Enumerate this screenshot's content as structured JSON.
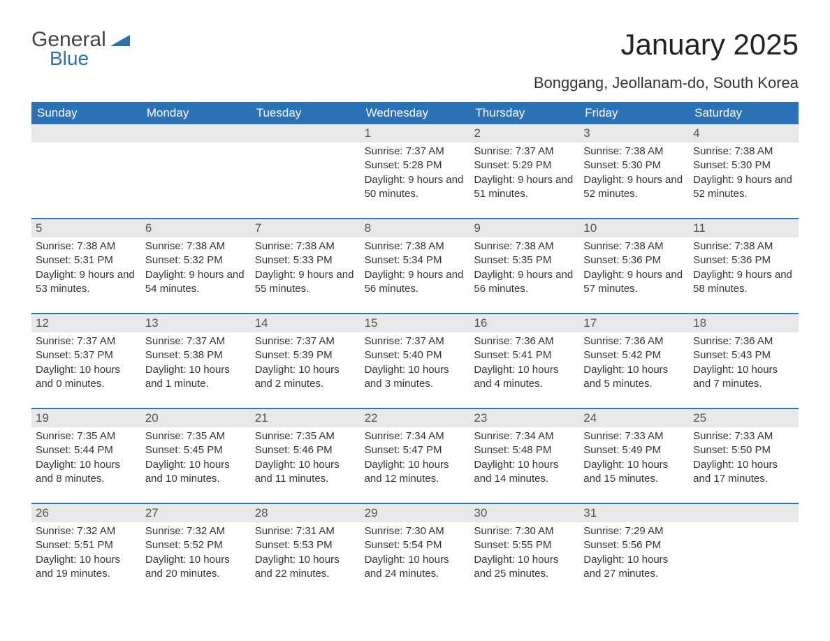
{
  "logo": {
    "general": "General",
    "blue": "Blue",
    "tri_color": "#2a72b5"
  },
  "title": "January 2025",
  "subtitle": "Bonggang, Jeollanam-do, South Korea",
  "colors": {
    "header_bg": "#2a72b5",
    "header_text": "#ffffff",
    "daynum_bg": "#e8e8e8",
    "daynum_text": "#555555",
    "body_bg": "#ffffff",
    "body_text": "#333333",
    "week_border": "#2a72b5"
  },
  "fonts": {
    "title_pt": 42,
    "subtitle_pt": 22,
    "weekday_pt": 17,
    "daynum_pt": 17,
    "body_pt": 15
  },
  "weekdays": [
    "Sunday",
    "Monday",
    "Tuesday",
    "Wednesday",
    "Thursday",
    "Friday",
    "Saturday"
  ],
  "weeks": [
    [
      {
        "day": "",
        "sunrise": "",
        "sunset": "",
        "daylight": ""
      },
      {
        "day": "",
        "sunrise": "",
        "sunset": "",
        "daylight": ""
      },
      {
        "day": "",
        "sunrise": "",
        "sunset": "",
        "daylight": ""
      },
      {
        "day": "1",
        "sunrise": "Sunrise: 7:37 AM",
        "sunset": "Sunset: 5:28 PM",
        "daylight": "Daylight: 9 hours and 50 minutes."
      },
      {
        "day": "2",
        "sunrise": "Sunrise: 7:37 AM",
        "sunset": "Sunset: 5:29 PM",
        "daylight": "Daylight: 9 hours and 51 minutes."
      },
      {
        "day": "3",
        "sunrise": "Sunrise: 7:38 AM",
        "sunset": "Sunset: 5:30 PM",
        "daylight": "Daylight: 9 hours and 52 minutes."
      },
      {
        "day": "4",
        "sunrise": "Sunrise: 7:38 AM",
        "sunset": "Sunset: 5:30 PM",
        "daylight": "Daylight: 9 hours and 52 minutes."
      }
    ],
    [
      {
        "day": "5",
        "sunrise": "Sunrise: 7:38 AM",
        "sunset": "Sunset: 5:31 PM",
        "daylight": "Daylight: 9 hours and 53 minutes."
      },
      {
        "day": "6",
        "sunrise": "Sunrise: 7:38 AM",
        "sunset": "Sunset: 5:32 PM",
        "daylight": "Daylight: 9 hours and 54 minutes."
      },
      {
        "day": "7",
        "sunrise": "Sunrise: 7:38 AM",
        "sunset": "Sunset: 5:33 PM",
        "daylight": "Daylight: 9 hours and 55 minutes."
      },
      {
        "day": "8",
        "sunrise": "Sunrise: 7:38 AM",
        "sunset": "Sunset: 5:34 PM",
        "daylight": "Daylight: 9 hours and 56 minutes."
      },
      {
        "day": "9",
        "sunrise": "Sunrise: 7:38 AM",
        "sunset": "Sunset: 5:35 PM",
        "daylight": "Daylight: 9 hours and 56 minutes."
      },
      {
        "day": "10",
        "sunrise": "Sunrise: 7:38 AM",
        "sunset": "Sunset: 5:36 PM",
        "daylight": "Daylight: 9 hours and 57 minutes."
      },
      {
        "day": "11",
        "sunrise": "Sunrise: 7:38 AM",
        "sunset": "Sunset: 5:36 PM",
        "daylight": "Daylight: 9 hours and 58 minutes."
      }
    ],
    [
      {
        "day": "12",
        "sunrise": "Sunrise: 7:37 AM",
        "sunset": "Sunset: 5:37 PM",
        "daylight": "Daylight: 10 hours and 0 minutes."
      },
      {
        "day": "13",
        "sunrise": "Sunrise: 7:37 AM",
        "sunset": "Sunset: 5:38 PM",
        "daylight": "Daylight: 10 hours and 1 minute."
      },
      {
        "day": "14",
        "sunrise": "Sunrise: 7:37 AM",
        "sunset": "Sunset: 5:39 PM",
        "daylight": "Daylight: 10 hours and 2 minutes."
      },
      {
        "day": "15",
        "sunrise": "Sunrise: 7:37 AM",
        "sunset": "Sunset: 5:40 PM",
        "daylight": "Daylight: 10 hours and 3 minutes."
      },
      {
        "day": "16",
        "sunrise": "Sunrise: 7:36 AM",
        "sunset": "Sunset: 5:41 PM",
        "daylight": "Daylight: 10 hours and 4 minutes."
      },
      {
        "day": "17",
        "sunrise": "Sunrise: 7:36 AM",
        "sunset": "Sunset: 5:42 PM",
        "daylight": "Daylight: 10 hours and 5 minutes."
      },
      {
        "day": "18",
        "sunrise": "Sunrise: 7:36 AM",
        "sunset": "Sunset: 5:43 PM",
        "daylight": "Daylight: 10 hours and 7 minutes."
      }
    ],
    [
      {
        "day": "19",
        "sunrise": "Sunrise: 7:35 AM",
        "sunset": "Sunset: 5:44 PM",
        "daylight": "Daylight: 10 hours and 8 minutes."
      },
      {
        "day": "20",
        "sunrise": "Sunrise: 7:35 AM",
        "sunset": "Sunset: 5:45 PM",
        "daylight": "Daylight: 10 hours and 10 minutes."
      },
      {
        "day": "21",
        "sunrise": "Sunrise: 7:35 AM",
        "sunset": "Sunset: 5:46 PM",
        "daylight": "Daylight: 10 hours and 11 minutes."
      },
      {
        "day": "22",
        "sunrise": "Sunrise: 7:34 AM",
        "sunset": "Sunset: 5:47 PM",
        "daylight": "Daylight: 10 hours and 12 minutes."
      },
      {
        "day": "23",
        "sunrise": "Sunrise: 7:34 AM",
        "sunset": "Sunset: 5:48 PM",
        "daylight": "Daylight: 10 hours and 14 minutes."
      },
      {
        "day": "24",
        "sunrise": "Sunrise: 7:33 AM",
        "sunset": "Sunset: 5:49 PM",
        "daylight": "Daylight: 10 hours and 15 minutes."
      },
      {
        "day": "25",
        "sunrise": "Sunrise: 7:33 AM",
        "sunset": "Sunset: 5:50 PM",
        "daylight": "Daylight: 10 hours and 17 minutes."
      }
    ],
    [
      {
        "day": "26",
        "sunrise": "Sunrise: 7:32 AM",
        "sunset": "Sunset: 5:51 PM",
        "daylight": "Daylight: 10 hours and 19 minutes."
      },
      {
        "day": "27",
        "sunrise": "Sunrise: 7:32 AM",
        "sunset": "Sunset: 5:52 PM",
        "daylight": "Daylight: 10 hours and 20 minutes."
      },
      {
        "day": "28",
        "sunrise": "Sunrise: 7:31 AM",
        "sunset": "Sunset: 5:53 PM",
        "daylight": "Daylight: 10 hours and 22 minutes."
      },
      {
        "day": "29",
        "sunrise": "Sunrise: 7:30 AM",
        "sunset": "Sunset: 5:54 PM",
        "daylight": "Daylight: 10 hours and 24 minutes."
      },
      {
        "day": "30",
        "sunrise": "Sunrise: 7:30 AM",
        "sunset": "Sunset: 5:55 PM",
        "daylight": "Daylight: 10 hours and 25 minutes."
      },
      {
        "day": "31",
        "sunrise": "Sunrise: 7:29 AM",
        "sunset": "Sunset: 5:56 PM",
        "daylight": "Daylight: 10 hours and 27 minutes."
      },
      {
        "day": "",
        "sunrise": "",
        "sunset": "",
        "daylight": ""
      }
    ]
  ]
}
